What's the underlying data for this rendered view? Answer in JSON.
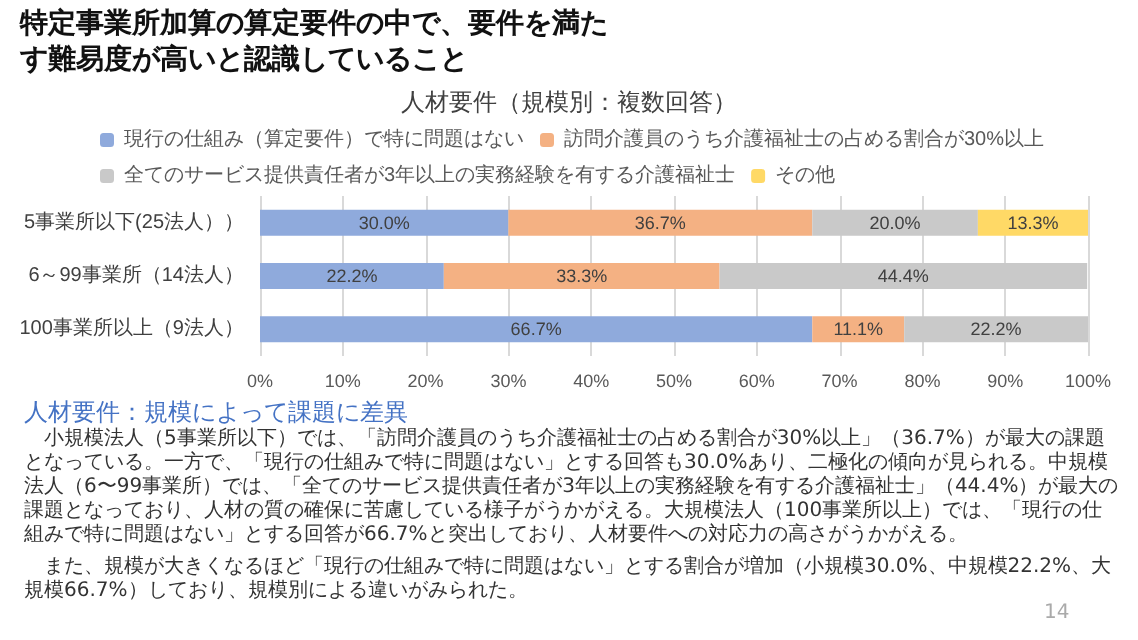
{
  "chart_data": {
    "type": "bar",
    "orientation": "horizontal",
    "stacked": true,
    "title": "特定事業所加算の算定要件の中で、要件を満たす難易度が高いと認識していること",
    "subtitle": "人材要件（規模別：複数回答）",
    "categories": [
      "5事業所以下(25法人））",
      "6～99事業所（14法人）",
      "100事業所以上（9法人）"
    ],
    "series": [
      {
        "name": "現行の仕組み（算定要件）で特に問題はない",
        "color": "#8faadc",
        "values": [
          30.0,
          22.2,
          66.7
        ],
        "value_labels": [
          "30.0%",
          "22.2%",
          "66.7%"
        ]
      },
      {
        "name": "訪問介護員のうち介護福祉士の占める割合が30%以上",
        "color": "#f4b183",
        "values": [
          36.7,
          33.3,
          11.1
        ],
        "value_labels": [
          "36.7%",
          "33.3%",
          "11.1%"
        ]
      },
      {
        "name": "全てのサービス提供責任者が3年以上の実務経験を有する介護福祉士",
        "color": "#c9c9c9",
        "values": [
          20.0,
          44.4,
          22.2
        ],
        "value_labels": [
          "20.0%",
          "44.4%",
          "22.2%"
        ]
      },
      {
        "name": "その他",
        "color": "#ffd966",
        "values": [
          13.3,
          null,
          null
        ],
        "value_labels": [
          "13.3%",
          null,
          null
        ]
      }
    ],
    "xlim": [
      0,
      100
    ],
    "xticks": [
      {
        "value": 0,
        "label": "0%"
      },
      {
        "value": 10,
        "label": "10%"
      },
      {
        "value": 20,
        "label": "20%"
      },
      {
        "value": 30,
        "label": "30%"
      },
      {
        "value": 40,
        "label": "40%"
      },
      {
        "value": 50,
        "label": "50%"
      },
      {
        "value": 60,
        "label": "60%"
      },
      {
        "value": 70,
        "label": "70%"
      },
      {
        "value": 80,
        "label": "80%"
      },
      {
        "value": 90,
        "label": "90%"
      },
      {
        "value": 100,
        "label": "100%"
      }
    ],
    "grid": "x",
    "legend": "top",
    "annotations": [
      "人材要件：規模によって課題に差異",
      "小規模法人（5事業所以下）では、「訪問介護員のうち介護福祉士の占める割合が30%以上」（36.7%）が最大の課題となっている。一方で、「現行の仕組みで特に問題はない」とする回答も30.0%あり、二極化の傾向が見られる。中規模法人（6〜99事業所）では、「全てのサービス提供責任者が3年以上の実務経験を有する介護福祉士」（44.4%）が最大の課題となっており、人材の質の確保に苦慮している様子がうかがえる。大規模法人（100事業所以上）では、「現行の仕組みで特に問題はない」とする回答が66.7%と突出しており、人材要件への対応力の高さがうかがえる。",
      "また、規模が大きくなるほど「現行の仕組みで特に問題はない」とする割合が増加（小規模30.0%、中規模22.2%、大規模66.7%）しており、規模別による違いがみられた。",
      "14"
    ]
  }
}
